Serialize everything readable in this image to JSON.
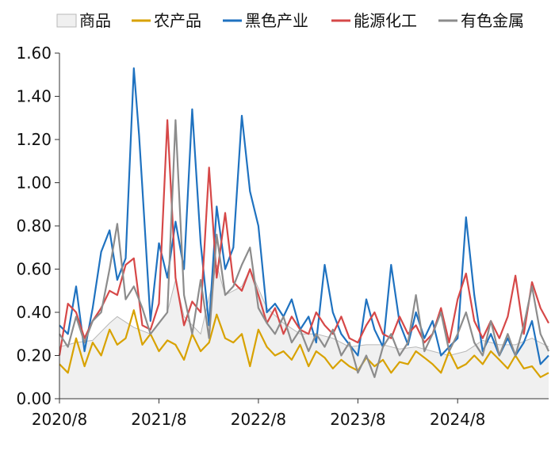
{
  "chart_data": {
    "type": "line",
    "title": "",
    "xlabel": "",
    "ylabel": "",
    "ylim": [
      0,
      1.6
    ],
    "y_ticks": [
      "0.00",
      "0.20",
      "0.40",
      "0.60",
      "0.80",
      "1.00",
      "1.20",
      "1.40",
      "1.60"
    ],
    "x_range": [
      "2020-08",
      "2025-07"
    ],
    "x_ticks": [
      {
        "value": "2020-08",
        "label": "2020/8"
      },
      {
        "value": "2021-08",
        "label": "2021/8"
      },
      {
        "value": "2022-08",
        "label": "2022/8"
      },
      {
        "value": "2023-08",
        "label": "2023/8"
      },
      {
        "value": "2024-08",
        "label": "2024/8"
      }
    ],
    "grid": false,
    "legend_position": "top",
    "series": [
      {
        "name": "商品",
        "style": "area",
        "color": "#f0f0f0",
        "stroke": "#b8b8b8",
        "points": [
          [
            "2020-08-01",
            0.24
          ],
          [
            "2020-10-01",
            0.26
          ],
          [
            "2020-12-01",
            0.27
          ],
          [
            "2021-02-01",
            0.35
          ],
          [
            "2021-03-01",
            0.38
          ],
          [
            "2021-05-01",
            0.33
          ],
          [
            "2021-07-01",
            0.3
          ],
          [
            "2021-09-01",
            0.4
          ],
          [
            "2021-10-01",
            0.55
          ],
          [
            "2021-11-01",
            0.38
          ],
          [
            "2022-01-01",
            0.3
          ],
          [
            "2022-03-01",
            0.62
          ],
          [
            "2022-04-01",
            0.48
          ],
          [
            "2022-06-01",
            0.52
          ],
          [
            "2022-07-01",
            0.6
          ],
          [
            "2022-09-01",
            0.42
          ],
          [
            "2022-11-01",
            0.35
          ],
          [
            "2023-01-01",
            0.3
          ],
          [
            "2023-03-01",
            0.3
          ],
          [
            "2023-05-01",
            0.28
          ],
          [
            "2023-07-01",
            0.24
          ],
          [
            "2023-09-01",
            0.25
          ],
          [
            "2023-11-01",
            0.25
          ],
          [
            "2024-01-01",
            0.23
          ],
          [
            "2024-03-01",
            0.24
          ],
          [
            "2024-05-01",
            0.22
          ],
          [
            "2024-07-01",
            0.2
          ],
          [
            "2024-09-01",
            0.22
          ],
          [
            "2024-11-01",
            0.27
          ],
          [
            "2025-01-01",
            0.25
          ],
          [
            "2025-03-01",
            0.25
          ],
          [
            "2025-05-01",
            0.28
          ],
          [
            "2025-07-01",
            0.24
          ]
        ]
      },
      {
        "name": "农产品",
        "style": "line",
        "color": "#d8a200",
        "points": [
          [
            "2020-08-01",
            0.16
          ],
          [
            "2020-09-01",
            0.12
          ],
          [
            "2020-10-01",
            0.28
          ],
          [
            "2020-11-01",
            0.15
          ],
          [
            "2020-12-01",
            0.26
          ],
          [
            "2021-01-01",
            0.2
          ],
          [
            "2021-02-01",
            0.32
          ],
          [
            "2021-03-01",
            0.25
          ],
          [
            "2021-04-01",
            0.28
          ],
          [
            "2021-05-01",
            0.41
          ],
          [
            "2021-06-01",
            0.25
          ],
          [
            "2021-07-01",
            0.3
          ],
          [
            "2021-08-01",
            0.22
          ],
          [
            "2021-09-01",
            0.27
          ],
          [
            "2021-10-01",
            0.25
          ],
          [
            "2021-11-01",
            0.18
          ],
          [
            "2021-12-01",
            0.3
          ],
          [
            "2022-01-01",
            0.22
          ],
          [
            "2022-02-01",
            0.26
          ],
          [
            "2022-03-01",
            0.39
          ],
          [
            "2022-04-01",
            0.28
          ],
          [
            "2022-05-01",
            0.26
          ],
          [
            "2022-06-01",
            0.3
          ],
          [
            "2022-07-01",
            0.15
          ],
          [
            "2022-08-01",
            0.32
          ],
          [
            "2022-09-01",
            0.24
          ],
          [
            "2022-10-01",
            0.2
          ],
          [
            "2022-11-01",
            0.22
          ],
          [
            "2022-12-01",
            0.18
          ],
          [
            "2023-01-01",
            0.25
          ],
          [
            "2023-02-01",
            0.15
          ],
          [
            "2023-03-01",
            0.22
          ],
          [
            "2023-04-01",
            0.19
          ],
          [
            "2023-05-01",
            0.14
          ],
          [
            "2023-06-01",
            0.18
          ],
          [
            "2023-07-01",
            0.15
          ],
          [
            "2023-08-01",
            0.13
          ],
          [
            "2023-09-01",
            0.19
          ],
          [
            "2023-10-01",
            0.15
          ],
          [
            "2023-11-01",
            0.18
          ],
          [
            "2023-12-01",
            0.12
          ],
          [
            "2024-01-01",
            0.17
          ],
          [
            "2024-02-01",
            0.16
          ],
          [
            "2024-03-01",
            0.22
          ],
          [
            "2024-04-01",
            0.19
          ],
          [
            "2024-05-01",
            0.16
          ],
          [
            "2024-06-01",
            0.12
          ],
          [
            "2024-07-01",
            0.22
          ],
          [
            "2024-08-01",
            0.14
          ],
          [
            "2024-09-01",
            0.16
          ],
          [
            "2024-10-01",
            0.2
          ],
          [
            "2024-11-01",
            0.16
          ],
          [
            "2024-12-01",
            0.22
          ],
          [
            "2025-01-01",
            0.18
          ],
          [
            "2025-02-01",
            0.14
          ],
          [
            "2025-03-01",
            0.2
          ],
          [
            "2025-04-01",
            0.14
          ],
          [
            "2025-05-01",
            0.15
          ],
          [
            "2025-06-01",
            0.1
          ],
          [
            "2025-07-01",
            0.12
          ]
        ]
      },
      {
        "name": "黑色产业",
        "style": "line",
        "color": "#1f72c0",
        "points": [
          [
            "2020-08-01",
            0.34
          ],
          [
            "2020-09-01",
            0.3
          ],
          [
            "2020-10-01",
            0.52
          ],
          [
            "2020-11-01",
            0.22
          ],
          [
            "2020-12-01",
            0.42
          ],
          [
            "2021-01-01",
            0.68
          ],
          [
            "2021-02-01",
            0.78
          ],
          [
            "2021-03-01",
            0.55
          ],
          [
            "2021-04-01",
            0.65
          ],
          [
            "2021-05-01",
            1.53
          ],
          [
            "2021-05-20",
            1.22
          ],
          [
            "2021-06-01",
            0.98
          ],
          [
            "2021-07-01",
            0.36
          ],
          [
            "2021-08-01",
            0.72
          ],
          [
            "2021-09-01",
            0.56
          ],
          [
            "2021-10-01",
            0.82
          ],
          [
            "2021-11-01",
            0.6
          ],
          [
            "2021-12-01",
            1.34
          ],
          [
            "2022-01-01",
            0.72
          ],
          [
            "2022-02-01",
            0.34
          ],
          [
            "2022-03-01",
            0.89
          ],
          [
            "2022-04-01",
            0.6
          ],
          [
            "2022-05-01",
            0.7
          ],
          [
            "2022-06-01",
            1.31
          ],
          [
            "2022-07-01",
            0.96
          ],
          [
            "2022-08-01",
            0.8
          ],
          [
            "2022-09-01",
            0.4
          ],
          [
            "2022-10-01",
            0.44
          ],
          [
            "2022-11-01",
            0.38
          ],
          [
            "2022-12-01",
            0.46
          ],
          [
            "2023-01-01",
            0.32
          ],
          [
            "2023-02-01",
            0.38
          ],
          [
            "2023-03-01",
            0.26
          ],
          [
            "2023-04-01",
            0.62
          ],
          [
            "2023-05-01",
            0.4
          ],
          [
            "2023-06-01",
            0.3
          ],
          [
            "2023-07-01",
            0.25
          ],
          [
            "2023-08-01",
            0.2
          ],
          [
            "2023-09-01",
            0.46
          ],
          [
            "2023-10-01",
            0.32
          ],
          [
            "2023-11-01",
            0.24
          ],
          [
            "2023-12-01",
            0.62
          ],
          [
            "2024-01-01",
            0.35
          ],
          [
            "2024-02-01",
            0.25
          ],
          [
            "2024-03-01",
            0.4
          ],
          [
            "2024-04-01",
            0.28
          ],
          [
            "2024-05-01",
            0.36
          ],
          [
            "2024-06-01",
            0.2
          ],
          [
            "2024-07-01",
            0.24
          ],
          [
            "2024-08-01",
            0.28
          ],
          [
            "2024-09-01",
            0.84
          ],
          [
            "2024-10-01",
            0.48
          ],
          [
            "2024-11-01",
            0.22
          ],
          [
            "2024-12-01",
            0.3
          ],
          [
            "2025-01-01",
            0.2
          ],
          [
            "2025-02-01",
            0.28
          ],
          [
            "2025-03-01",
            0.2
          ],
          [
            "2025-04-01",
            0.26
          ],
          [
            "2025-05-01",
            0.36
          ],
          [
            "2025-06-01",
            0.16
          ],
          [
            "2025-07-01",
            0.2
          ]
        ]
      },
      {
        "name": "能源化工",
        "style": "line",
        "color": "#d64848",
        "points": [
          [
            "2020-08-01",
            0.2
          ],
          [
            "2020-09-01",
            0.44
          ],
          [
            "2020-10-01",
            0.4
          ],
          [
            "2020-11-01",
            0.28
          ],
          [
            "2020-12-01",
            0.36
          ],
          [
            "2021-01-01",
            0.42
          ],
          [
            "2021-02-01",
            0.5
          ],
          [
            "2021-03-01",
            0.48
          ],
          [
            "2021-04-01",
            0.62
          ],
          [
            "2021-05-01",
            0.65
          ],
          [
            "2021-06-01",
            0.34
          ],
          [
            "2021-07-01",
            0.32
          ],
          [
            "2021-08-01",
            0.44
          ],
          [
            "2021-09-01",
            1.29
          ],
          [
            "2021-10-01",
            0.56
          ],
          [
            "2021-11-01",
            0.34
          ],
          [
            "2021-12-01",
            0.45
          ],
          [
            "2022-01-01",
            0.4
          ],
          [
            "2022-02-01",
            1.07
          ],
          [
            "2022-03-01",
            0.56
          ],
          [
            "2022-04-01",
            0.86
          ],
          [
            "2022-05-01",
            0.54
          ],
          [
            "2022-06-01",
            0.5
          ],
          [
            "2022-07-01",
            0.6
          ],
          [
            "2022-08-01",
            0.48
          ],
          [
            "2022-09-01",
            0.35
          ],
          [
            "2022-10-01",
            0.42
          ],
          [
            "2022-11-01",
            0.3
          ],
          [
            "2022-12-01",
            0.38
          ],
          [
            "2023-01-01",
            0.32
          ],
          [
            "2023-02-01",
            0.3
          ],
          [
            "2023-03-01",
            0.4
          ],
          [
            "2023-04-01",
            0.34
          ],
          [
            "2023-05-01",
            0.3
          ],
          [
            "2023-06-01",
            0.38
          ],
          [
            "2023-07-01",
            0.28
          ],
          [
            "2023-08-01",
            0.26
          ],
          [
            "2023-09-01",
            0.34
          ],
          [
            "2023-10-01",
            0.4
          ],
          [
            "2023-11-01",
            0.3
          ],
          [
            "2023-12-01",
            0.28
          ],
          [
            "2024-01-01",
            0.38
          ],
          [
            "2024-02-01",
            0.3
          ],
          [
            "2024-03-01",
            0.34
          ],
          [
            "2024-04-01",
            0.26
          ],
          [
            "2024-05-01",
            0.3
          ],
          [
            "2024-06-01",
            0.42
          ],
          [
            "2024-07-01",
            0.26
          ],
          [
            "2024-08-01",
            0.46
          ],
          [
            "2024-09-01",
            0.58
          ],
          [
            "2024-10-01",
            0.36
          ],
          [
            "2024-11-01",
            0.28
          ],
          [
            "2024-12-01",
            0.36
          ],
          [
            "2025-01-01",
            0.28
          ],
          [
            "2025-02-01",
            0.38
          ],
          [
            "2025-03-01",
            0.57
          ],
          [
            "2025-04-01",
            0.3
          ],
          [
            "2025-05-01",
            0.54
          ],
          [
            "2025-06-01",
            0.42
          ],
          [
            "2025-07-01",
            0.35
          ]
        ]
      },
      {
        "name": "有色金属",
        "style": "line",
        "color": "#8c8c8c",
        "points": [
          [
            "2020-08-01",
            0.3
          ],
          [
            "2020-09-01",
            0.24
          ],
          [
            "2020-10-01",
            0.38
          ],
          [
            "2020-11-01",
            0.26
          ],
          [
            "2020-12-01",
            0.36
          ],
          [
            "2021-01-01",
            0.4
          ],
          [
            "2021-02-01",
            0.6
          ],
          [
            "2021-03-01",
            0.81
          ],
          [
            "2021-04-01",
            0.46
          ],
          [
            "2021-05-01",
            0.52
          ],
          [
            "2021-06-01",
            0.42
          ],
          [
            "2021-07-01",
            0.3
          ],
          [
            "2021-08-01",
            0.35
          ],
          [
            "2021-09-01",
            0.4
          ],
          [
            "2021-10-01",
            1.29
          ],
          [
            "2021-11-01",
            0.48
          ],
          [
            "2021-12-01",
            0.3
          ],
          [
            "2022-01-01",
            0.55
          ],
          [
            "2022-02-01",
            0.28
          ],
          [
            "2022-03-01",
            0.76
          ],
          [
            "2022-04-01",
            0.48
          ],
          [
            "2022-05-01",
            0.52
          ],
          [
            "2022-06-01",
            0.62
          ],
          [
            "2022-07-01",
            0.7
          ],
          [
            "2022-08-01",
            0.42
          ],
          [
            "2022-09-01",
            0.35
          ],
          [
            "2022-10-01",
            0.3
          ],
          [
            "2022-11-01",
            0.38
          ],
          [
            "2022-12-01",
            0.26
          ],
          [
            "2023-01-01",
            0.32
          ],
          [
            "2023-02-01",
            0.22
          ],
          [
            "2023-03-01",
            0.3
          ],
          [
            "2023-04-01",
            0.24
          ],
          [
            "2023-05-01",
            0.32
          ],
          [
            "2023-06-01",
            0.2
          ],
          [
            "2023-07-01",
            0.26
          ],
          [
            "2023-08-01",
            0.12
          ],
          [
            "2023-09-01",
            0.2
          ],
          [
            "2023-10-01",
            0.1
          ],
          [
            "2023-11-01",
            0.24
          ],
          [
            "2023-12-01",
            0.3
          ],
          [
            "2024-01-01",
            0.2
          ],
          [
            "2024-02-01",
            0.26
          ],
          [
            "2024-03-01",
            0.48
          ],
          [
            "2024-04-01",
            0.22
          ],
          [
            "2024-05-01",
            0.3
          ],
          [
            "2024-06-01",
            0.4
          ],
          [
            "2024-07-01",
            0.22
          ],
          [
            "2024-08-01",
            0.3
          ],
          [
            "2024-09-01",
            0.4
          ],
          [
            "2024-10-01",
            0.26
          ],
          [
            "2024-11-01",
            0.2
          ],
          [
            "2024-12-01",
            0.36
          ],
          [
            "2025-01-01",
            0.2
          ],
          [
            "2025-02-01",
            0.3
          ],
          [
            "2025-03-01",
            0.2
          ],
          [
            "2025-04-01",
            0.34
          ],
          [
            "2025-05-01",
            0.52
          ],
          [
            "2025-06-01",
            0.3
          ],
          [
            "2025-07-01",
            0.22
          ]
        ]
      }
    ]
  }
}
